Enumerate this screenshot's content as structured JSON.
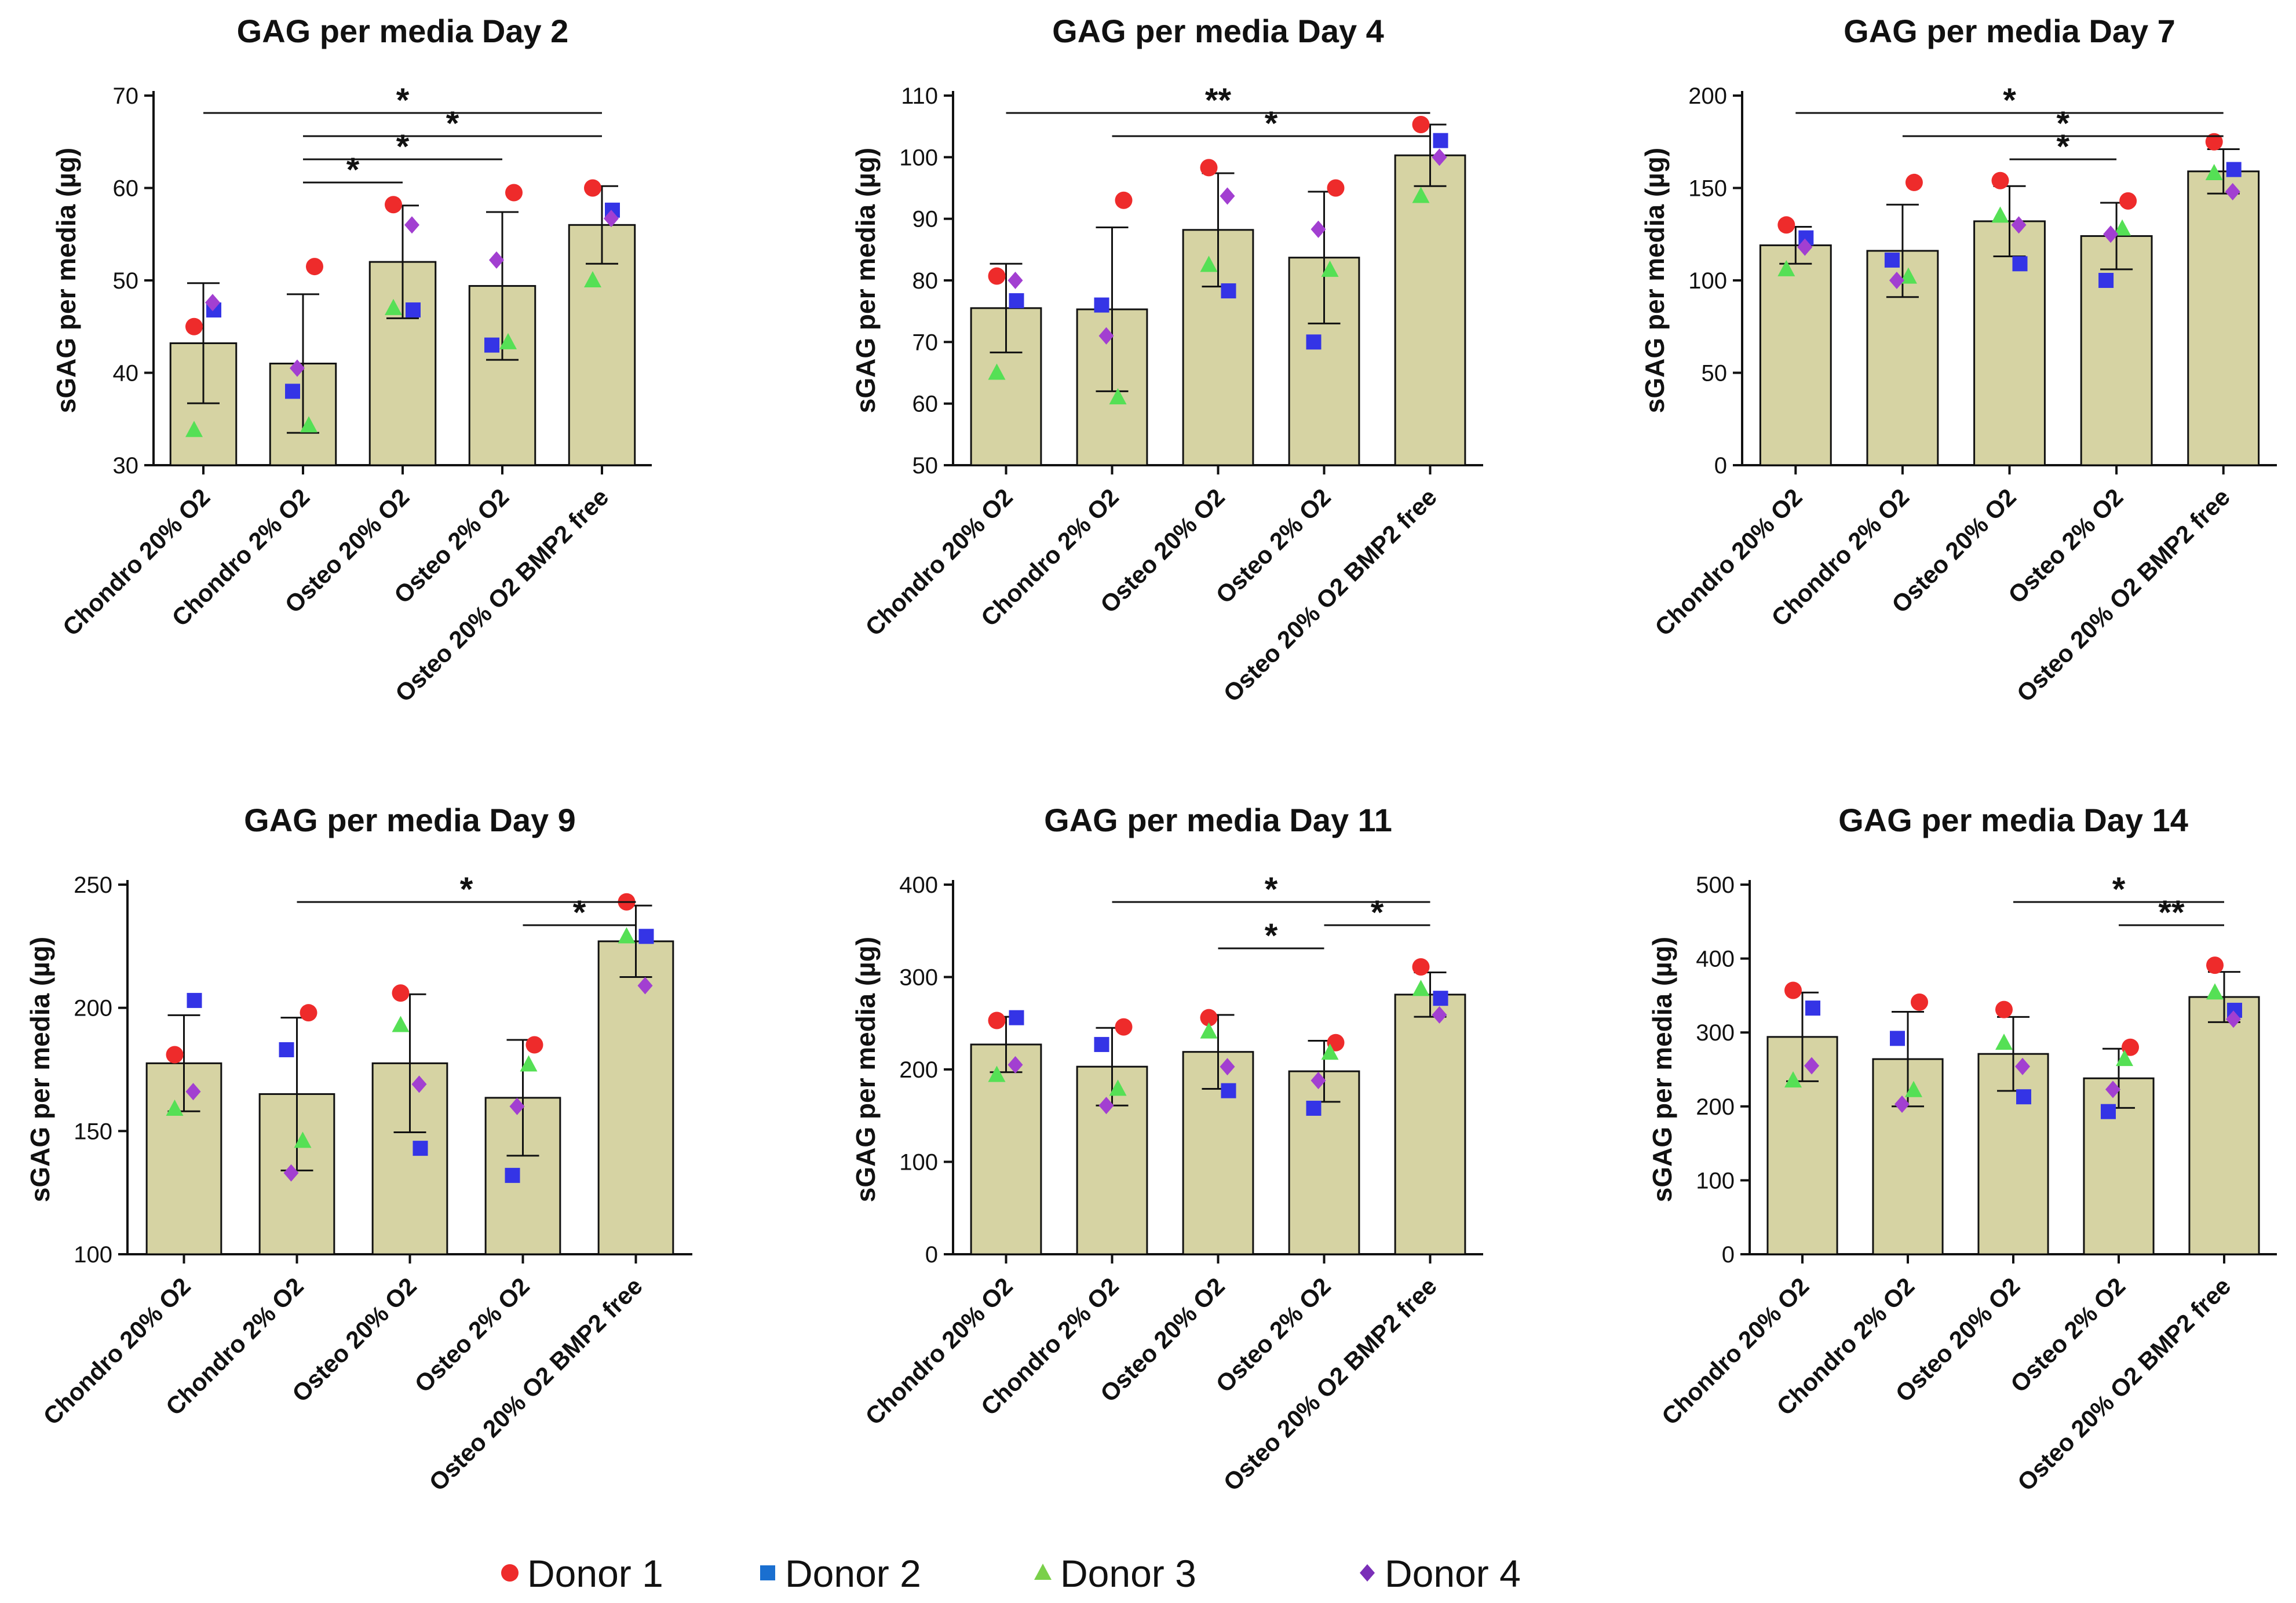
{
  "figure": {
    "colors": {
      "bar_fill": "#d6d3a3",
      "donor1": "#ee2b2b",
      "donor2": "#3434e6",
      "donor3": "#55e055",
      "donor4": "#a23fd1"
    },
    "legend": [
      {
        "label": "Donor 1",
        "marker": "circle",
        "color": "#ee2b2b"
      },
      {
        "label": "Donor 2",
        "marker": "square",
        "color": "#1a6fd0"
      },
      {
        "label": "Donor 3",
        "marker": "triangle",
        "color": "#7ad04a"
      },
      {
        "label": "Donor 4",
        "marker": "diamond",
        "color": "#7a2fb8"
      }
    ]
  },
  "chart_data": [
    {
      "type": "bar",
      "title": "GAG per media Day 2",
      "ylabel": "sGAG per media (µg)",
      "ylim": [
        30,
        70
      ],
      "yticks": [
        30,
        40,
        50,
        60,
        70
      ],
      "categories": [
        "Chondro 20% O2",
        "Chondro 2% O2",
        "Osteo 20% O2",
        "Osteo 2% O2",
        "Osteo 20% O2 BMP2 free"
      ],
      "values": [
        43.2,
        41.0,
        52.0,
        49.4,
        56.0
      ],
      "errors": [
        6.5,
        7.5,
        6.1,
        8.0,
        4.2
      ],
      "donors": [
        {
          "name": "Donor 1",
          "values": [
            45.0,
            51.5,
            58.2,
            59.5,
            60.0
          ]
        },
        {
          "name": "Donor 2",
          "values": [
            46.8,
            38.0,
            46.8,
            43.0,
            57.6
          ]
        },
        {
          "name": "Donor 3",
          "values": [
            33.8,
            34.3,
            47.0,
            43.3,
            50.0
          ]
        },
        {
          "name": "Donor 4",
          "values": [
            47.6,
            40.5,
            56.0,
            52.2,
            56.7
          ]
        }
      ],
      "significance": [
        {
          "from": 0,
          "to": 4,
          "label": "*"
        },
        {
          "from": 1,
          "to": 4,
          "label": "*"
        },
        {
          "from": 1,
          "to": 3,
          "label": "*"
        },
        {
          "from": 1,
          "to": 2,
          "label": "*"
        }
      ]
    },
    {
      "type": "bar",
      "title": "GAG per media Day 4",
      "ylabel": "sGAG per media (µg)",
      "ylim": [
        50,
        110
      ],
      "yticks": [
        50,
        60,
        70,
        80,
        90,
        100,
        110
      ],
      "categories": [
        "Chondro 20% O2",
        "Chondro 2% O2",
        "Osteo 20% O2",
        "Osteo 2% O2",
        "Osteo 20% O2 BMP2 free"
      ],
      "values": [
        75.5,
        75.3,
        88.2,
        83.7,
        100.3
      ],
      "errors": [
        7.2,
        13.3,
        9.2,
        10.7,
        5.0
      ],
      "donors": [
        {
          "name": "Donor 1",
          "values": [
            80.7,
            93.0,
            98.3,
            95.0,
            105.3
          ]
        },
        {
          "name": "Donor 2",
          "values": [
            76.7,
            76.0,
            78.3,
            70.0,
            102.7
          ]
        },
        {
          "name": "Donor 3",
          "values": [
            65.0,
            61.0,
            82.5,
            81.7,
            93.7
          ]
        },
        {
          "name": "Donor 4",
          "values": [
            80.0,
            71.0,
            93.7,
            88.3,
            100.0
          ]
        }
      ],
      "significance": [
        {
          "from": 0,
          "to": 4,
          "label": "**"
        },
        {
          "from": 1,
          "to": 4,
          "label": "*"
        }
      ]
    },
    {
      "type": "bar",
      "title": "GAG per media Day 7",
      "ylabel": "sGAG per media (µg)",
      "ylim": [
        0,
        200
      ],
      "yticks": [
        0,
        50,
        100,
        150,
        200
      ],
      "categories": [
        "Chondro 20% O2",
        "Chondro 2% O2",
        "Osteo 20% O2",
        "Osteo 2% O2",
        "Osteo 20% O2 BMP2 free"
      ],
      "values": [
        119,
        116,
        132,
        124,
        159
      ],
      "errors": [
        10,
        25,
        19,
        18,
        12
      ],
      "donors": [
        {
          "name": "Donor 1",
          "values": [
            130,
            153,
            154,
            143,
            175
          ]
        },
        {
          "name": "Donor 2",
          "values": [
            123,
            111,
            109,
            100,
            160
          ]
        },
        {
          "name": "Donor 3",
          "values": [
            106,
            102,
            135,
            128,
            158
          ]
        },
        {
          "name": "Donor 4",
          "values": [
            118,
            100,
            130,
            125,
            148
          ]
        }
      ],
      "significance": [
        {
          "from": 0,
          "to": 4,
          "label": "*"
        },
        {
          "from": 1,
          "to": 4,
          "label": "*"
        },
        {
          "from": 2,
          "to": 3,
          "label": "*"
        }
      ]
    },
    {
      "type": "bar",
      "title": "GAG per media Day 9",
      "ylabel": "sGAG per media (µg)",
      "ylim": [
        100,
        250
      ],
      "yticks": [
        100,
        150,
        200,
        250
      ],
      "categories": [
        "Chondro 20% O2",
        "Chondro 2% O2",
        "Osteo 20% O2",
        "Osteo 2% O2",
        "Osteo 20% O2 BMP2 free"
      ],
      "values": [
        177.5,
        165.0,
        177.5,
        163.5,
        227.0
      ],
      "errors": [
        19.5,
        31.0,
        28.0,
        23.5,
        14.5
      ],
      "donors": [
        {
          "name": "Donor 1",
          "values": [
            181,
            198,
            206,
            185,
            243
          ]
        },
        {
          "name": "Donor 2",
          "values": [
            203,
            183,
            143,
            132,
            229
          ]
        },
        {
          "name": "Donor 3",
          "values": [
            159,
            146,
            193,
            177,
            229
          ]
        },
        {
          "name": "Donor 4",
          "values": [
            166,
            133,
            169,
            160,
            209
          ]
        }
      ],
      "significance": [
        {
          "from": 1,
          "to": 4,
          "label": "*"
        },
        {
          "from": 3,
          "to": 4,
          "label": "*"
        }
      ]
    },
    {
      "type": "bar",
      "title": "GAG per media Day 11",
      "ylabel": "sGAG per media (µg)",
      "ylim": [
        0,
        400
      ],
      "yticks": [
        0,
        100,
        200,
        300,
        400
      ],
      "categories": [
        "Chondro 20% O2",
        "Chondro 2% O2",
        "Osteo 20% O2",
        "Osteo 2% O2",
        "Osteo 20% O2 BMP2 free"
      ],
      "values": [
        227,
        203,
        219,
        198,
        281
      ],
      "errors": [
        30,
        42,
        40,
        33,
        24
      ],
      "donors": [
        {
          "name": "Donor 1",
          "values": [
            253,
            246,
            256,
            229,
            311
          ]
        },
        {
          "name": "Donor 2",
          "values": [
            256,
            227,
            177,
            158,
            277
          ]
        },
        {
          "name": "Donor 3",
          "values": [
            194,
            179,
            241,
            218,
            287
          ]
        },
        {
          "name": "Donor 4",
          "values": [
            205,
            161,
            203,
            188,
            259
          ]
        }
      ],
      "significance": [
        {
          "from": 1,
          "to": 4,
          "label": "*"
        },
        {
          "from": 3,
          "to": 4,
          "label": "*"
        },
        {
          "from": 2,
          "to": 3,
          "label": "*"
        }
      ]
    },
    {
      "type": "bar",
      "title": "GAG per media Day 14",
      "ylabel": "sGAG per media (µg)",
      "ylim": [
        0,
        500
      ],
      "yticks": [
        0,
        100,
        200,
        300,
        400,
        500
      ],
      "categories": [
        "Chondro 20% O2",
        "Chondro 2% O2",
        "Osteo 20% O2",
        "Osteo 2% O2",
        "Osteo 20% O2 BMP2 free"
      ],
      "values": [
        294,
        264,
        271,
        238,
        348
      ],
      "errors": [
        60,
        64,
        50,
        40,
        34
      ],
      "donors": [
        {
          "name": "Donor 1",
          "values": [
            357,
            341,
            331,
            280,
            391
          ]
        },
        {
          "name": "Donor 2",
          "values": [
            333,
            292,
            213,
            193,
            330
          ]
        },
        {
          "name": "Donor 3",
          "values": [
            235,
            222,
            286,
            264,
            354
          ]
        },
        {
          "name": "Donor 4",
          "values": [
            255,
            203,
            254,
            223,
            318
          ]
        }
      ],
      "significance": [
        {
          "from": 2,
          "to": 4,
          "label": "*"
        },
        {
          "from": 3,
          "to": 4,
          "label": "**"
        }
      ]
    }
  ]
}
